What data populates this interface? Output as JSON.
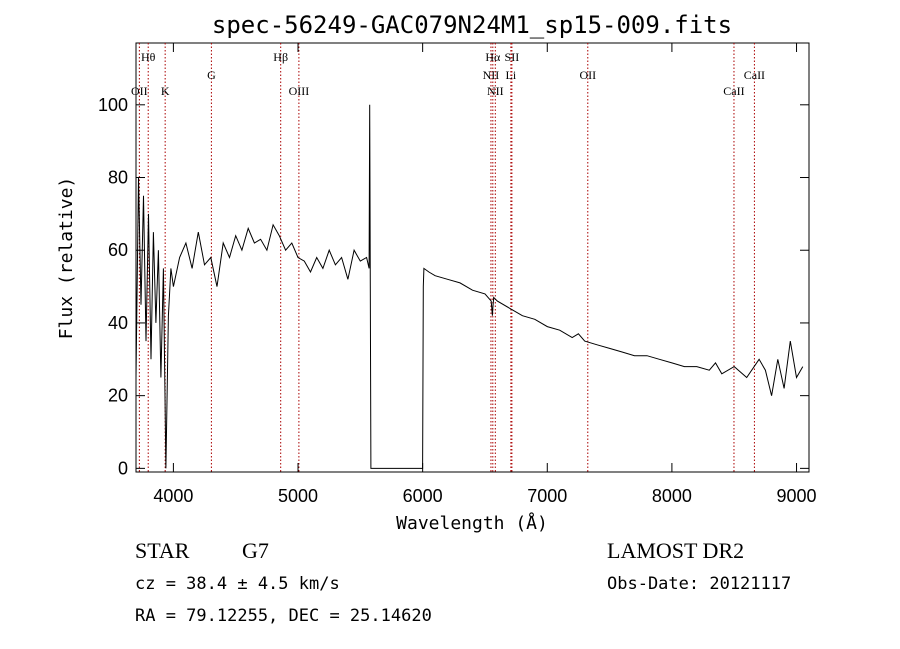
{
  "chart_data": {
    "type": "line",
    "title": "spec-56249-GAC079N24M1_sp15-009.fits",
    "xlabel": "Wavelength (Å)",
    "ylabel": "Flux (relative)",
    "xlim": [
      3700,
      9100
    ],
    "ylim": [
      -1,
      117
    ],
    "xticks": [
      4000,
      5000,
      6000,
      7000,
      8000,
      9000
    ],
    "yticks": [
      0,
      20,
      40,
      60,
      80,
      100
    ],
    "grid": false,
    "series": [
      {
        "x": [
          3700,
          3720,
          3740,
          3760,
          3780,
          3800,
          3820,
          3840,
          3860,
          3880,
          3900,
          3920,
          3940,
          3960,
          3980,
          4000,
          4050,
          4100,
          4150,
          4200,
          4250,
          4300,
          4350,
          4400,
          4450,
          4500,
          4550,
          4600,
          4650,
          4700,
          4750,
          4800,
          4850,
          4900,
          4950,
          5000,
          5050,
          5100,
          5150,
          5200,
          5250,
          5300,
          5350,
          5400,
          5450,
          5500,
          5550,
          5570,
          5575,
          5580,
          5585,
          5590,
          5600,
          5700,
          5800,
          5900,
          5990,
          6000,
          6005,
          6010,
          6050,
          6100,
          6200,
          6300,
          6400,
          6500,
          6550,
          6560,
          6563,
          6570,
          6600,
          6700,
          6800,
          6900,
          7000,
          7100,
          7200,
          7250,
          7300,
          7400,
          7500,
          7600,
          7700,
          7800,
          7900,
          8000,
          8100,
          8200,
          8300,
          8350,
          8400,
          8500,
          8600,
          8700,
          8750,
          8800,
          8850,
          8900,
          8950,
          9000,
          9050
        ],
        "y": [
          25,
          80,
          45,
          75,
          35,
          70,
          30,
          65,
          40,
          60,
          25,
          55,
          0,
          42,
          55,
          50,
          58,
          62,
          55,
          65,
          56,
          58,
          50,
          62,
          58,
          64,
          60,
          66,
          62,
          63,
          60,
          67,
          64,
          60,
          62,
          58,
          57,
          54,
          58,
          55,
          60,
          56,
          58,
          52,
          60,
          57,
          58,
          55,
          100,
          50,
          0,
          0,
          0,
          0,
          0,
          0,
          0,
          0,
          50,
          55,
          54,
          53,
          52,
          51,
          49,
          48,
          46,
          42,
          44,
          47,
          46,
          44,
          42,
          41,
          39,
          38,
          36,
          37,
          35,
          34,
          33,
          32,
          31,
          31,
          30,
          29,
          28,
          28,
          27,
          29,
          26,
          28,
          25,
          30,
          27,
          20,
          30,
          22,
          35,
          25,
          28
        ]
      }
    ],
    "spectral_lines": [
      {
        "label": "Hθ",
        "wavelength": 3798,
        "row": 0
      },
      {
        "label": "OII",
        "wavelength": 3727,
        "row": 2
      },
      {
        "label": "K",
        "wavelength": 3934,
        "row": 2
      },
      {
        "label": "G",
        "wavelength": 4305,
        "row": 1
      },
      {
        "label": "Hβ",
        "wavelength": 4861,
        "row": 0
      },
      {
        "label": "OIII",
        "wavelength": 5007,
        "row": 2
      },
      {
        "label": "Hα",
        "wavelength": 6563,
        "row": 0
      },
      {
        "label": "SII",
        "wavelength": 6716,
        "row": 0
      },
      {
        "label": "NII",
        "wavelength": 6548,
        "row": 1
      },
      {
        "label": "Li",
        "wavelength": 6708,
        "row": 1
      },
      {
        "label": "NII",
        "wavelength": 6583,
        "row": 2
      },
      {
        "label": "OII",
        "wavelength": 7325,
        "row": 1
      },
      {
        "label": "CaII",
        "wavelength": 8498,
        "row": 2
      },
      {
        "label": "CaII",
        "wavelength": 8662,
        "row": 1
      }
    ]
  },
  "info": {
    "object_type": "STAR",
    "subclass": "G7",
    "survey": "LAMOST DR2",
    "cz_text": "cz = 38.4 ± 4.5 km/s",
    "obs_date_text": "Obs-Date: 20121117",
    "coords_text": "RA =  79.12255, DEC =  25.14620"
  }
}
